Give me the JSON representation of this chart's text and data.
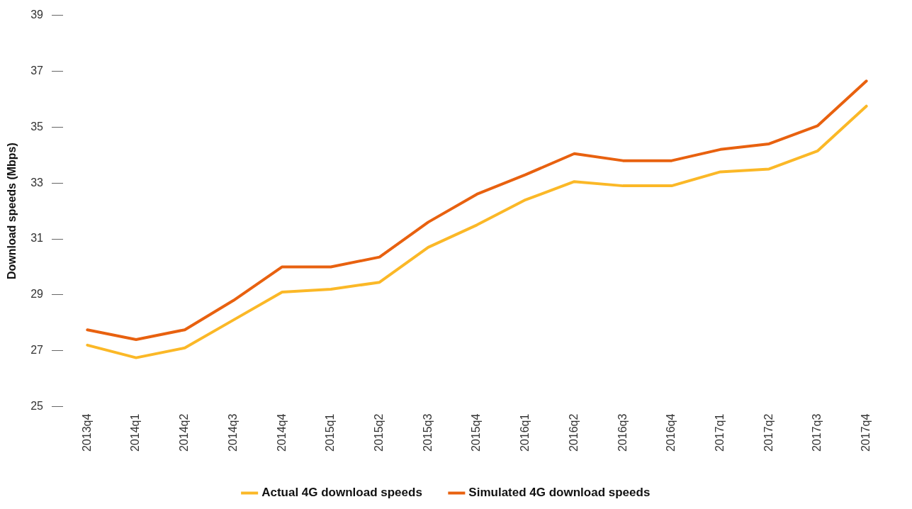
{
  "chart_data": {
    "type": "line",
    "ylabel": "Download speeds (Mbps)",
    "categories": [
      "2013q4",
      "2014q1",
      "2014q2",
      "2014q3",
      "2014q4",
      "2015q1",
      "2015q2",
      "2015q3",
      "2015q4",
      "2016q1",
      "2016q2",
      "2016q3",
      "2016q4",
      "2017q1",
      "2017q2",
      "2017q3",
      "2017q4"
    ],
    "series": [
      {
        "name": "Actual 4G download speeds",
        "color": "#fbb827",
        "values": [
          27.2,
          26.75,
          27.1,
          28.1,
          29.1,
          29.2,
          29.45,
          30.7,
          31.5,
          32.4,
          33.05,
          32.9,
          32.9,
          33.4,
          33.5,
          34.15,
          35.75
        ]
      },
      {
        "name": "Simulated 4G download speeds",
        "color": "#e8610f",
        "values": [
          27.75,
          27.4,
          27.75,
          28.8,
          30.0,
          30.0,
          30.35,
          31.6,
          32.6,
          33.3,
          34.05,
          33.8,
          33.8,
          34.2,
          34.4,
          35.05,
          36.65
        ]
      }
    ],
    "ylim": [
      25,
      39
    ],
    "yticks": [
      25,
      27,
      29,
      31,
      33,
      35,
      37,
      39
    ],
    "grid": false,
    "legend": "bottom",
    "marker": "none",
    "line_style": "solid"
  }
}
